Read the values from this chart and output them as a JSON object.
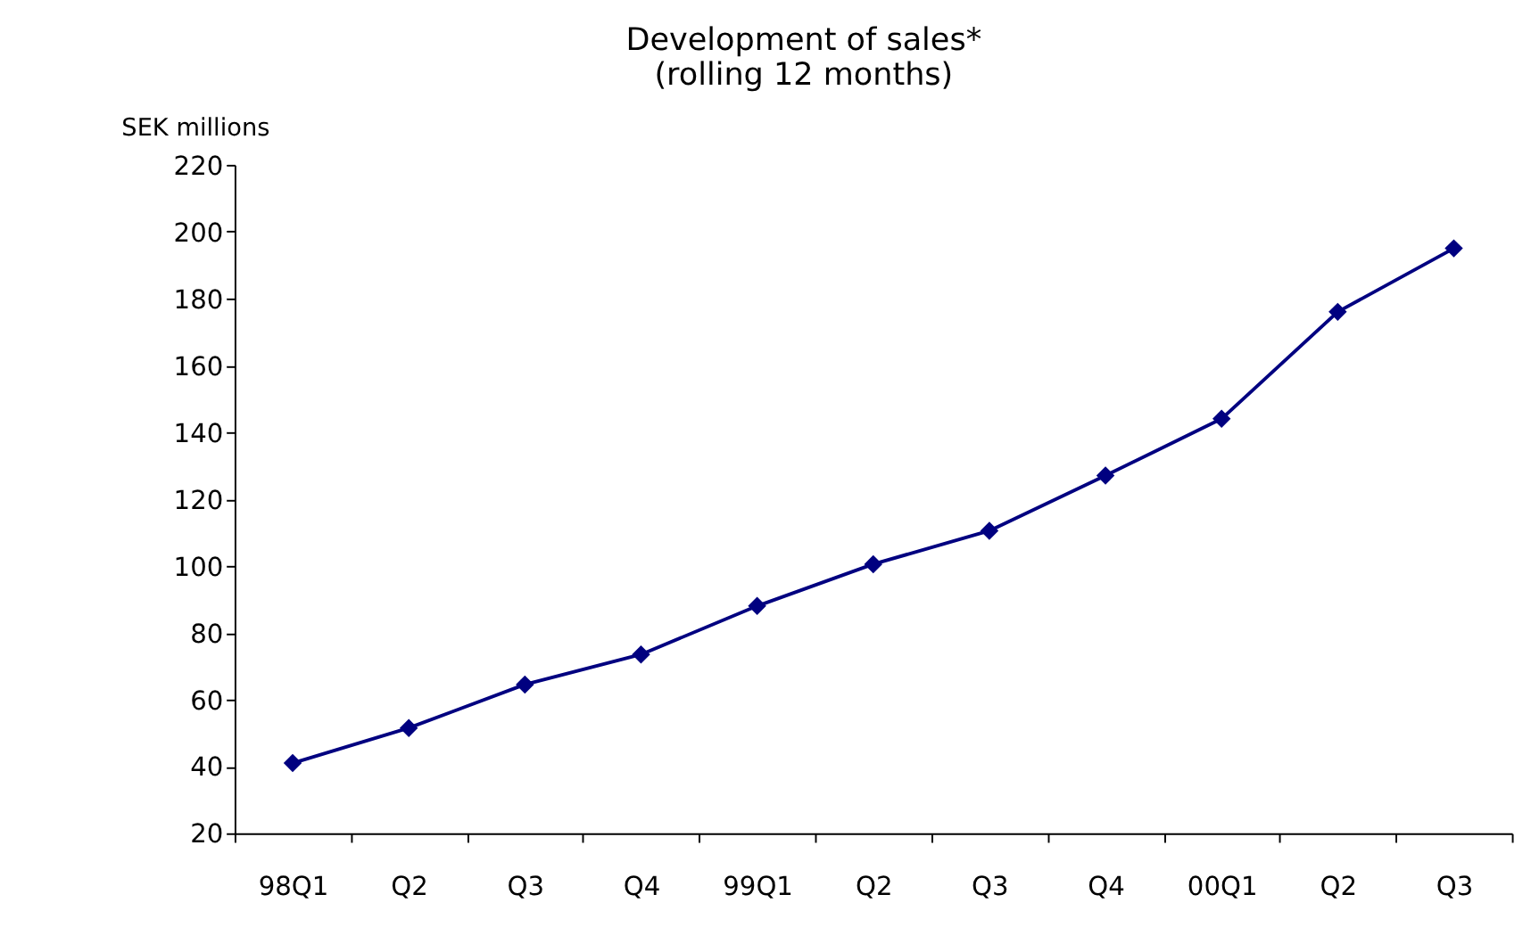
{
  "chart_data": {
    "type": "line",
    "title": [
      "Development of sales*",
      "(rolling 12 months)"
    ],
    "ylabel": "SEK millions",
    "categories": [
      "98Q1",
      "Q2",
      "Q3",
      "Q4",
      "99Q1",
      "Q2",
      "Q3",
      "Q4",
      "00Q1",
      "Q2",
      "Q3"
    ],
    "series": [
      {
        "color": "#000080",
        "values": [
          41,
          51.5,
          64.5,
          73.5,
          88,
          100.5,
          110.5,
          127,
          144,
          176,
          195
        ]
      }
    ],
    "ylim": [
      20,
      220
    ],
    "yticks": [
      20,
      40,
      60,
      80,
      100,
      120,
      140,
      160,
      180,
      200,
      220
    ],
    "grid": false,
    "marker": "diamond",
    "line_style": "solid"
  }
}
